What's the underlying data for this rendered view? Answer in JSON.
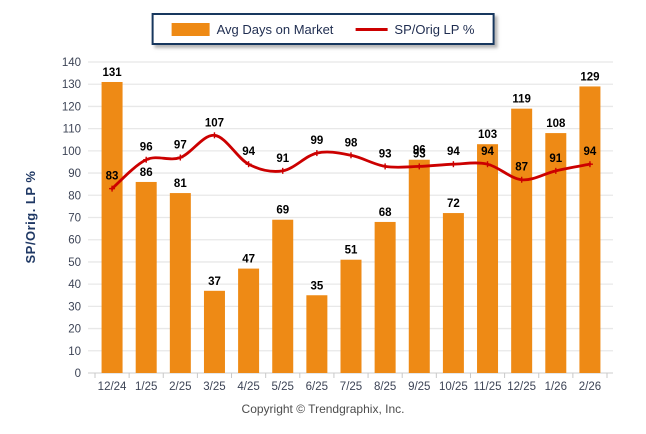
{
  "chart_data": {
    "type": "bar",
    "categories": [
      "12/24",
      "1/25",
      "2/25",
      "3/25",
      "4/25",
      "5/25",
      "6/25",
      "7/25",
      "8/25",
      "9/25",
      "10/25",
      "11/25",
      "12/25",
      "1/26",
      "2/26"
    ],
    "series": [
      {
        "name": "Avg Days on Market",
        "type": "bar",
        "color": "#EE8A15",
        "values": [
          131,
          86,
          81,
          37,
          47,
          69,
          35,
          51,
          68,
          96,
          72,
          103,
          119,
          108,
          129
        ]
      },
      {
        "name": "SP/Orig LP %",
        "type": "line",
        "color": "#CC0000",
        "values": [
          83,
          96,
          97,
          107,
          94,
          91,
          99,
          98,
          93,
          93,
          94,
          94,
          87,
          91,
          94
        ]
      }
    ],
    "title": "",
    "xlabel": "",
    "ylabel": "SP/Orig. LP %",
    "ylim": [
      0,
      140
    ],
    "ytick_step": 10,
    "grid": true,
    "legend_position": "top"
  },
  "colors": {
    "bar": "#EE8A15",
    "line": "#CC0000",
    "grid": "#E8E8E8",
    "baseline": "#D6D6D6",
    "tick": "#C9C9C9",
    "axis_text": "#3D4456",
    "value_label": "#000000",
    "axis_title": "#1F3864",
    "legend_border": "#17375E",
    "background": "#FFFFFF"
  },
  "footer": {
    "copyright": "Copyright © Trendgraphix, Inc."
  }
}
